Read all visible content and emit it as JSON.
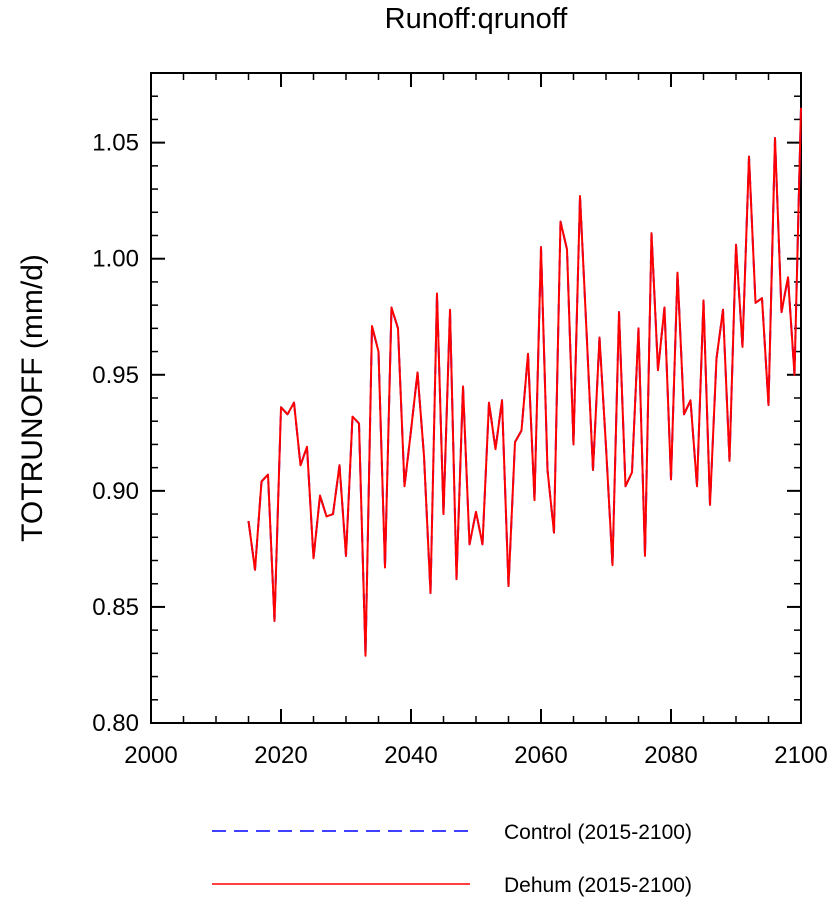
{
  "chart_data": {
    "type": "line",
    "title": "Runoff:qrunoff",
    "xlabel": "",
    "ylabel": "TOTRUNOFF  (mm/d)",
    "xlim": [
      2000,
      2100
    ],
    "ylim": [
      0.8,
      1.08
    ],
    "x_ticks": [
      2000,
      2020,
      2040,
      2060,
      2080,
      2100
    ],
    "x_tick_labels": [
      "2000",
      "2020",
      "2040",
      "2060",
      "2080",
      "2100"
    ],
    "y_ticks": [
      0.8,
      0.85,
      0.9,
      0.95,
      1.0,
      1.05
    ],
    "y_tick_labels": [
      "0.80",
      "0.85",
      "0.90",
      "0.95",
      "1.00",
      "1.05"
    ],
    "x": [
      2015,
      2016,
      2017,
      2018,
      2019,
      2020,
      2021,
      2022,
      2023,
      2024,
      2025,
      2026,
      2027,
      2028,
      2029,
      2030,
      2031,
      2032,
      2033,
      2034,
      2035,
      2036,
      2037,
      2038,
      2039,
      2040,
      2041,
      2042,
      2043,
      2044,
      2045,
      2046,
      2047,
      2048,
      2049,
      2050,
      2051,
      2052,
      2053,
      2054,
      2055,
      2056,
      2057,
      2058,
      2059,
      2060,
      2061,
      2062,
      2063,
      2064,
      2065,
      2066,
      2067,
      2068,
      2069,
      2070,
      2071,
      2072,
      2073,
      2074,
      2075,
      2076,
      2077,
      2078,
      2079,
      2080,
      2081,
      2082,
      2083,
      2084,
      2085,
      2086,
      2087,
      2088,
      2089,
      2090,
      2091,
      2092,
      2093,
      2094,
      2095,
      2096,
      2097,
      2098,
      2099,
      2100
    ],
    "series": [
      {
        "name": "Control (2015-2100)",
        "color": "#0000ff",
        "style": "dashed",
        "values": [
          0.887,
          0.866,
          0.904,
          0.907,
          0.844,
          0.936,
          0.933,
          0.938,
          0.911,
          0.919,
          0.871,
          0.898,
          0.889,
          0.89,
          0.911,
          0.872,
          0.932,
          0.929,
          0.829,
          0.971,
          0.96,
          0.867,
          0.979,
          0.97,
          0.902,
          0.926,
          0.951,
          0.915,
          0.856,
          0.985,
          0.89,
          0.978,
          0.862,
          0.945,
          0.877,
          0.891,
          0.877,
          0.938,
          0.918,
          0.939,
          0.859,
          0.921,
          0.926,
          0.959,
          0.896,
          1.005,
          0.909,
          0.882,
          1.016,
          1.004,
          0.92,
          1.027,
          0.969,
          0.909,
          0.966,
          0.919,
          0.868,
          0.977,
          0.902,
          0.908,
          0.97,
          0.872,
          1.011,
          0.952,
          0.979,
          0.905,
          0.994,
          0.933,
          0.939,
          0.902,
          0.982,
          0.894,
          0.957,
          0.978,
          0.913,
          1.006,
          0.962,
          1.044,
          0.981,
          0.983,
          0.937,
          1.052,
          0.977,
          0.992,
          0.95,
          1.065
        ]
      },
      {
        "name": "Dehum (2015-2100)",
        "color": "#ff0000",
        "style": "solid",
        "values": [
          0.887,
          0.866,
          0.904,
          0.907,
          0.844,
          0.936,
          0.933,
          0.938,
          0.911,
          0.919,
          0.871,
          0.898,
          0.889,
          0.89,
          0.911,
          0.872,
          0.932,
          0.929,
          0.829,
          0.971,
          0.96,
          0.867,
          0.979,
          0.97,
          0.902,
          0.926,
          0.951,
          0.915,
          0.856,
          0.985,
          0.89,
          0.978,
          0.862,
          0.945,
          0.877,
          0.891,
          0.877,
          0.938,
          0.918,
          0.939,
          0.859,
          0.921,
          0.926,
          0.959,
          0.896,
          1.005,
          0.909,
          0.882,
          1.016,
          1.004,
          0.92,
          1.027,
          0.969,
          0.909,
          0.966,
          0.919,
          0.868,
          0.977,
          0.902,
          0.908,
          0.97,
          0.872,
          1.011,
          0.952,
          0.979,
          0.905,
          0.994,
          0.933,
          0.939,
          0.902,
          0.982,
          0.894,
          0.957,
          0.978,
          0.913,
          1.006,
          0.962,
          1.044,
          0.981,
          0.983,
          0.937,
          1.052,
          0.977,
          0.992,
          0.95,
          1.065
        ]
      }
    ],
    "legend": {
      "placement": "bottom",
      "entries": [
        "Control (2015-2100)",
        "Dehum (2015-2100)"
      ]
    }
  }
}
